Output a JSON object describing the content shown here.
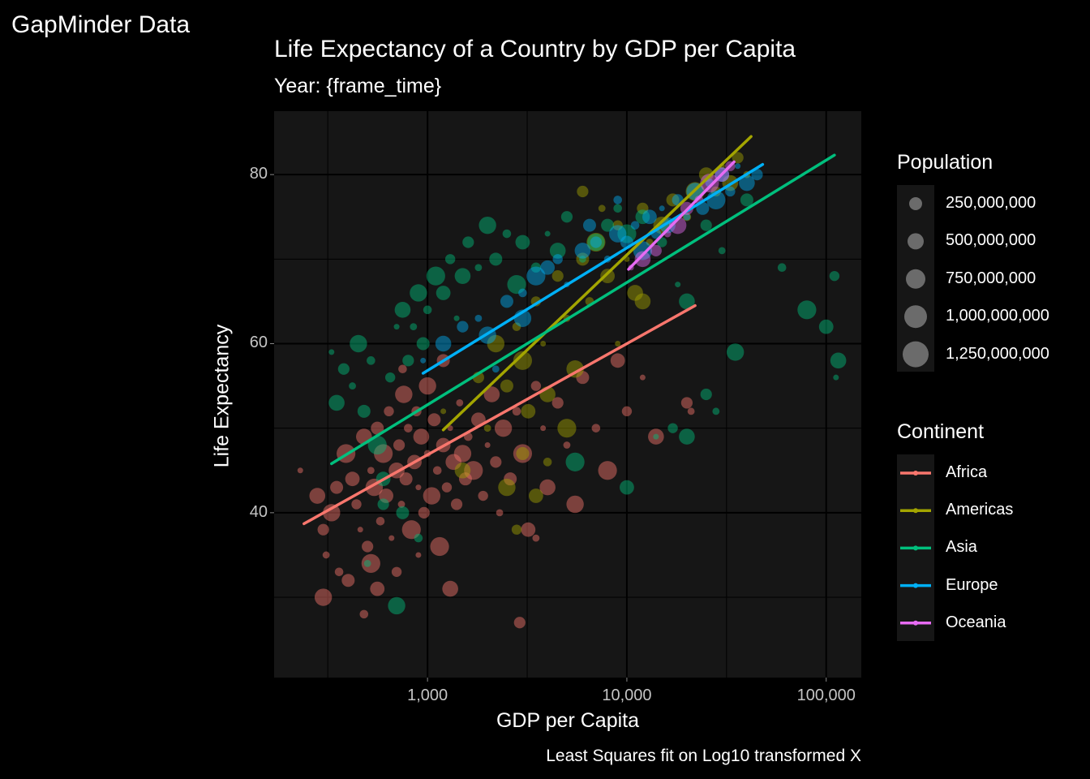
{
  "page_title": "GapMinder Data",
  "chart_data": {
    "type": "scatter",
    "title": "Life Expectancy of a Country by GDP per Capita",
    "subtitle": "Year: {frame_time}",
    "caption": "Least Squares fit on Log10 transformed X",
    "xlabel": "GDP per Capita",
    "ylabel": "Life Expectancy",
    "x_scale": "log10",
    "xlim": [
      170,
      150000
    ],
    "ylim": [
      20.5,
      87.5
    ],
    "x_ticks": [
      {
        "value": 1000,
        "label": "1,000"
      },
      {
        "value": 10000,
        "label": "10,000"
      },
      {
        "value": 100000,
        "label": "100,000"
      }
    ],
    "y_ticks": [
      {
        "value": 40,
        "label": "40"
      },
      {
        "value": 60,
        "label": "60"
      },
      {
        "value": 80,
        "label": "80"
      }
    ],
    "y_minor": [
      30,
      50,
      70
    ],
    "x_minor": [
      316,
      3162,
      31623
    ],
    "panel_color": "#161616",
    "grid_color": "#000000",
    "series": [
      {
        "name": "Africa",
        "color": "#F8766D",
        "fit": [
          [
            240,
            38.7
          ],
          [
            22000,
            64.5
          ]
        ],
        "points": [
          [
            230,
            45
          ],
          [
            280,
            42
          ],
          [
            300,
            38
          ],
          [
            310,
            35
          ],
          [
            330,
            40
          ],
          [
            350,
            43
          ],
          [
            360,
            33
          ],
          [
            390,
            47
          ],
          [
            420,
            44
          ],
          [
            440,
            41
          ],
          [
            460,
            38
          ],
          [
            480,
            49
          ],
          [
            500,
            36
          ],
          [
            520,
            45
          ],
          [
            540,
            43
          ],
          [
            560,
            50
          ],
          [
            580,
            39
          ],
          [
            600,
            47
          ],
          [
            620,
            42
          ],
          [
            640,
            52
          ],
          [
            660,
            37
          ],
          [
            700,
            45
          ],
          [
            720,
            48
          ],
          [
            740,
            41
          ],
          [
            760,
            54
          ],
          [
            780,
            44
          ],
          [
            800,
            50
          ],
          [
            830,
            38
          ],
          [
            860,
            46
          ],
          [
            880,
            52
          ],
          [
            900,
            43
          ],
          [
            930,
            49
          ],
          [
            960,
            40
          ],
          [
            1000,
            47
          ],
          [
            1050,
            42
          ],
          [
            1080,
            51
          ],
          [
            1120,
            45
          ],
          [
            1150,
            36
          ],
          [
            1200,
            48
          ],
          [
            1250,
            43
          ],
          [
            1300,
            50
          ],
          [
            1350,
            46
          ],
          [
            1400,
            41
          ],
          [
            1450,
            53
          ],
          [
            1500,
            47
          ],
          [
            1550,
            44
          ],
          [
            1600,
            49
          ],
          [
            1700,
            45
          ],
          [
            1800,
            51
          ],
          [
            1900,
            42
          ],
          [
            2000,
            48
          ],
          [
            2100,
            54
          ],
          [
            2200,
            46
          ],
          [
            2300,
            40
          ],
          [
            2400,
            50
          ],
          [
            2600,
            44
          ],
          [
            2800,
            52
          ],
          [
            3000,
            47
          ],
          [
            3200,
            38
          ],
          [
            3500,
            55
          ],
          [
            3800,
            50
          ],
          [
            4000,
            43
          ],
          [
            4500,
            53
          ],
          [
            5000,
            48
          ],
          [
            5500,
            41
          ],
          [
            6000,
            56
          ],
          [
            7000,
            50
          ],
          [
            8000,
            45
          ],
          [
            9000,
            58
          ],
          [
            10000,
            52
          ],
          [
            12000,
            56
          ],
          [
            14000,
            49
          ],
          [
            20000,
            53
          ],
          [
            21000,
            52
          ],
          [
            300,
            30
          ],
          [
            400,
            32
          ],
          [
            480,
            28
          ],
          [
            520,
            34
          ],
          [
            560,
            31
          ],
          [
            700,
            33
          ],
          [
            900,
            35
          ],
          [
            1300,
            31
          ],
          [
            2900,
            27
          ],
          [
            3500,
            37
          ],
          [
            1000,
            55
          ],
          [
            1200,
            58
          ],
          [
            750,
            57
          ]
        ]
      },
      {
        "name": "Americas",
        "color": "#A3A500",
        "fit": [
          [
            1200,
            49.8
          ],
          [
            42000,
            84.5
          ]
        ],
        "points": [
          [
            1200,
            52
          ],
          [
            1500,
            45
          ],
          [
            1800,
            56
          ],
          [
            2000,
            50
          ],
          [
            2200,
            60
          ],
          [
            2500,
            55
          ],
          [
            2800,
            62
          ],
          [
            3000,
            58
          ],
          [
            3200,
            52
          ],
          [
            3500,
            65
          ],
          [
            3800,
            60
          ],
          [
            4000,
            54
          ],
          [
            4500,
            68
          ],
          [
            5000,
            63
          ],
          [
            5500,
            57
          ],
          [
            6000,
            70
          ],
          [
            6500,
            65
          ],
          [
            7000,
            72
          ],
          [
            8000,
            68
          ],
          [
            9000,
            74
          ],
          [
            10000,
            70
          ],
          [
            11000,
            66
          ],
          [
            12000,
            76
          ],
          [
            13000,
            72
          ],
          [
            15000,
            74
          ],
          [
            17000,
            77
          ],
          [
            20000,
            75
          ],
          [
            22000,
            78
          ],
          [
            25000,
            80
          ],
          [
            28000,
            78
          ],
          [
            30000,
            81
          ],
          [
            33000,
            79
          ],
          [
            36000,
            82
          ],
          [
            40000,
            80
          ],
          [
            2500,
            43
          ],
          [
            3000,
            47
          ],
          [
            4000,
            46
          ],
          [
            5000,
            50
          ],
          [
            3500,
            42
          ],
          [
            2800,
            38
          ],
          [
            9000,
            60
          ],
          [
            12000,
            65
          ],
          [
            6000,
            78
          ],
          [
            7500,
            76
          ]
        ]
      },
      {
        "name": "Asia",
        "color": "#00BF7D",
        "fit": [
          [
            330,
            45.8
          ],
          [
            110000,
            82.3
          ]
        ],
        "points": [
          [
            330,
            59
          ],
          [
            350,
            53
          ],
          [
            380,
            57
          ],
          [
            420,
            55
          ],
          [
            450,
            60
          ],
          [
            480,
            52
          ],
          [
            520,
            58
          ],
          [
            560,
            48
          ],
          [
            600,
            44
          ],
          [
            650,
            56
          ],
          [
            700,
            62
          ],
          [
            750,
            64
          ],
          [
            800,
            58
          ],
          [
            850,
            62
          ],
          [
            900,
            66
          ],
          [
            950,
            60
          ],
          [
            1000,
            64
          ],
          [
            1100,
            68
          ],
          [
            1200,
            66
          ],
          [
            1300,
            70
          ],
          [
            1400,
            63
          ],
          [
            1500,
            68
          ],
          [
            1600,
            72
          ],
          [
            1800,
            69
          ],
          [
            2000,
            74
          ],
          [
            2200,
            70
          ],
          [
            2500,
            73
          ],
          [
            2800,
            67
          ],
          [
            3000,
            72
          ],
          [
            3500,
            69
          ],
          [
            4000,
            73
          ],
          [
            4500,
            71
          ],
          [
            5000,
            75
          ],
          [
            6000,
            70
          ],
          [
            7000,
            72
          ],
          [
            8000,
            74
          ],
          [
            9000,
            76
          ],
          [
            10000,
            73
          ],
          [
            12000,
            75
          ],
          [
            15000,
            72
          ],
          [
            18000,
            67
          ],
          [
            20000,
            65
          ],
          [
            25000,
            74
          ],
          [
            30000,
            71
          ],
          [
            35000,
            59
          ],
          [
            40000,
            77
          ],
          [
            60000,
            69
          ],
          [
            80000,
            64
          ],
          [
            100000,
            62
          ],
          [
            110000,
            68
          ],
          [
            112000,
            56
          ],
          [
            115000,
            58
          ],
          [
            600,
            41
          ],
          [
            500,
            34
          ],
          [
            700,
            29
          ],
          [
            750,
            40
          ],
          [
            900,
            37
          ],
          [
            5500,
            46
          ],
          [
            10000,
            43
          ],
          [
            17000,
            50
          ],
          [
            14000,
            49
          ],
          [
            20000,
            49
          ],
          [
            25000,
            54
          ],
          [
            28000,
            52
          ]
        ]
      },
      {
        "name": "Europe",
        "color": "#00B0F6",
        "fit": [
          [
            950,
            56.5
          ],
          [
            48000,
            81.2
          ]
        ],
        "points": [
          [
            950,
            58
          ],
          [
            1200,
            60
          ],
          [
            1500,
            62
          ],
          [
            1800,
            63
          ],
          [
            2000,
            61
          ],
          [
            2500,
            65
          ],
          [
            3000,
            66
          ],
          [
            3500,
            68
          ],
          [
            4000,
            69
          ],
          [
            4500,
            70
          ],
          [
            5000,
            67
          ],
          [
            6000,
            71
          ],
          [
            7000,
            72
          ],
          [
            8000,
            70
          ],
          [
            9000,
            73
          ],
          [
            10000,
            72
          ],
          [
            11000,
            74
          ],
          [
            12000,
            71
          ],
          [
            13000,
            75
          ],
          [
            14000,
            73
          ],
          [
            15000,
            76
          ],
          [
            16000,
            74
          ],
          [
            18000,
            77
          ],
          [
            20000,
            75
          ],
          [
            22000,
            78
          ],
          [
            24000,
            76
          ],
          [
            26000,
            79
          ],
          [
            28000,
            77
          ],
          [
            30000,
            80
          ],
          [
            33000,
            78
          ],
          [
            36000,
            81
          ],
          [
            40000,
            79
          ],
          [
            45000,
            80
          ],
          [
            2200,
            57
          ],
          [
            3000,
            63
          ],
          [
            6500,
            74
          ],
          [
            9000,
            77
          ]
        ]
      },
      {
        "name": "Oceania",
        "color": "#E76BF3",
        "fit": [
          [
            10200,
            68.8
          ],
          [
            34500,
            81.5
          ]
        ],
        "points": [
          [
            10500,
            69
          ],
          [
            12000,
            70
          ],
          [
            14000,
            71
          ],
          [
            16000,
            73
          ],
          [
            18000,
            74
          ],
          [
            20000,
            76
          ],
          [
            23000,
            77
          ],
          [
            26000,
            79
          ],
          [
            30000,
            80
          ],
          [
            33000,
            81
          ]
        ]
      }
    ]
  },
  "legend_size": {
    "title": "Population",
    "entries": [
      "250,000,000",
      "500,000,000",
      "750,000,000",
      "1,000,000,000",
      "1,250,000,000"
    ]
  },
  "legend_color": {
    "title": "Continent"
  }
}
